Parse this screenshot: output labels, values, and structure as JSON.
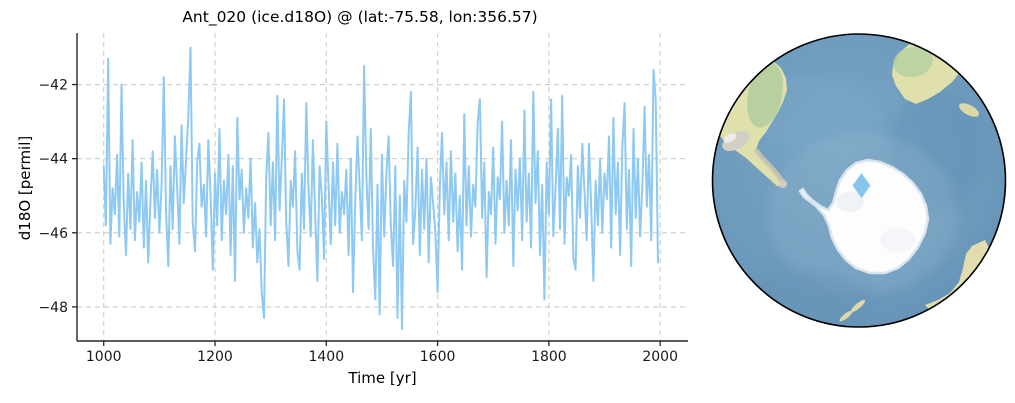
{
  "figure": {
    "title": "Ant_020 (ice.d18O) @ (lat:-75.58, lon:356.57)"
  },
  "chart_data": {
    "type": "line",
    "title": "Ant_020 (ice.d18O) @ (lat:-75.58, lon:356.57)",
    "xlabel": "Time [yr]",
    "ylabel": "d18O [permil]",
    "xlim": [
      952,
      2050
    ],
    "ylim": [
      -48.92,
      -40.61
    ],
    "xticks": [
      1000,
      1200,
      1400,
      1600,
      1800,
      2000
    ],
    "yticks": [
      -42,
      -44,
      -46,
      -48
    ],
    "grid": true,
    "legend": "none",
    "line_color": "#8dc9f2",
    "grid_color": "#cccccc",
    "x_start": 1000,
    "x_step": 4,
    "values": [
      -44.2,
      -45.8,
      -41.3,
      -46.3,
      -44.8,
      -45.5,
      -43.9,
      -46.1,
      -42.0,
      -45.2,
      -46.6,
      -44.4,
      -45.9,
      -43.5,
      -46.2,
      -44.9,
      -45.7,
      -44.1,
      -46.4,
      -44.6,
      -46.8,
      -45.1,
      -43.8,
      -45.6,
      -44.3,
      -46.0,
      -44.7,
      -41.8,
      -45.4,
      -46.9,
      -44.2,
      -45.9,
      -43.4,
      -44.8,
      -46.3,
      -43.1,
      -45.2,
      -44.0,
      -42.9,
      -41.0,
      -45.7,
      -46.5,
      -44.1,
      -43.6,
      -45.3,
      -44.7,
      -46.1,
      -43.5,
      -45.0,
      -47.0,
      -44.4,
      -45.8,
      -43.2,
      -46.2,
      -44.6,
      -45.5,
      -43.9,
      -46.6,
      -44.2,
      -47.3,
      -42.9,
      -45.1,
      -44.3,
      -46.0,
      -44.8,
      -45.6,
      -44.0,
      -46.4,
      -45.2,
      -46.8,
      -45.9,
      -47.6,
      -48.3,
      -44.5,
      -43.3,
      -45.8,
      -44.1,
      -46.2,
      -42.3,
      -45.4,
      -44.0,
      -42.4,
      -45.7,
      -46.9,
      -44.6,
      -45.3,
      -43.8,
      -46.5,
      -47.0,
      -44.4,
      -45.9,
      -42.5,
      -44.8,
      -46.1,
      -43.5,
      -45.5,
      -47.3,
      -44.2,
      -45.0,
      -46.7,
      -43.0,
      -44.7,
      -46.3,
      -44.1,
      -45.8,
      -43.6,
      -46.0,
      -44.9,
      -45.5,
      -44.3,
      -46.6,
      -44.0,
      -47.6,
      -45.2,
      -43.4,
      -44.8,
      -46.2,
      -41.5,
      -44.5,
      -45.9,
      -43.2,
      -46.4,
      -47.8,
      -44.7,
      -48.2,
      -43.9,
      -46.1,
      -44.4,
      -43.4,
      -45.8,
      -46.9,
      -44.2,
      -48.3,
      -45.0,
      -48.6,
      -44.6,
      -45.7,
      -43.3,
      -42.2,
      -46.3,
      -45.4,
      -43.7,
      -46.6,
      -44.3,
      -45.9,
      -44.0,
      -46.8,
      -44.5,
      -45.2,
      -46.0,
      -47.6,
      -44.8,
      -43.3,
      -45.5,
      -44.1,
      -46.2,
      -43.8,
      -45.7,
      -44.4,
      -46.5,
      -45.0,
      -47.0,
      -42.8,
      -45.8,
      -44.2,
      -46.1,
      -44.7,
      -45.3,
      -43.0,
      -42.4,
      -45.6,
      -44.1,
      -47.2,
      -44.9,
      -45.5,
      -43.7,
      -46.3,
      -44.5,
      -45.1,
      -43.0,
      -46.0,
      -44.6,
      -45.8,
      -43.5,
      -46.9,
      -44.3,
      -45.4,
      -44.0,
      -46.2,
      -42.7,
      -45.7,
      -44.4,
      -46.4,
      -42.2,
      -45.2,
      -43.8,
      -46.6,
      -44.7,
      -47.8,
      -44.1,
      -45.5,
      -42.4,
      -46.1,
      -44.8,
      -43.2,
      -45.9,
      -42.3,
      -46.3,
      -44.5,
      -45.0,
      -43.9,
      -46.7,
      -47.0,
      -44.2,
      -45.6,
      -43.6,
      -44.9,
      -46.2,
      -43.6,
      -45.3,
      -47.3,
      -44.6,
      -45.8,
      -44.0,
      -46.0,
      -44.4,
      -45.1,
      -43.4,
      -46.4,
      -42.9,
      -45.5,
      -44.1,
      -46.6,
      -43.7,
      -42.5,
      -45.9,
      -44.3,
      -46.9,
      -43.2,
      -45.6,
      -44.0,
      -46.1,
      -44.7,
      -42.6,
      -45.3,
      -43.9,
      -46.2,
      -41.6,
      -42.4,
      -46.8
    ]
  },
  "globe": {
    "type": "orthographic-map-south-pole",
    "marker": {
      "shape": "diamond",
      "color": "#85c4ec"
    },
    "colors": {
      "ocean": "#6d9abc",
      "land": "#dfe0ab",
      "vegetation": "#b4cd9d",
      "mountains": "#d3cfc7",
      "ice": "#fdfdfe",
      "outline": "#000000"
    }
  }
}
